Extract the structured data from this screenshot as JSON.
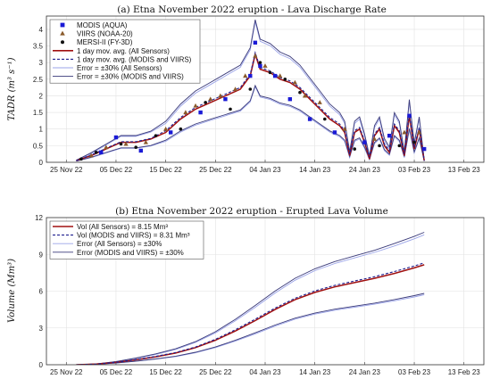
{
  "figure_title": "Etna November 2022 eruption",
  "chart_data": [
    {
      "type": "line",
      "panel": "(a)",
      "title": "(a) Etna November 2022 eruption - Lava Discharge Rate",
      "ylabel": "TADR (m³ s⁻¹)",
      "xlabel": "",
      "x_unit": "date",
      "x_ticks": [
        "25 Nov 22",
        "05 Dec 22",
        "15 Dec 22",
        "25 Dec 22",
        "04 Jan 23",
        "14 Jan 23",
        "24 Jan 23",
        "03 Feb 23",
        "13 Feb 23"
      ],
      "y_ticks": [
        0,
        0.5,
        1,
        1.5,
        2,
        2.5,
        3,
        3.5,
        4
      ],
      "ylim": [
        0,
        4.4
      ],
      "grid": true,
      "legend_position": "top-left",
      "series": [
        {
          "name": "MODIS (AQUA)",
          "kind": "scatter",
          "marker": "square",
          "color": "#1a1ad6",
          "x": [
            "2022-12-02",
            "2022-12-05",
            "2022-12-10",
            "2022-12-16",
            "2022-12-22",
            "2022-12-27",
            "2023-01-01",
            "2023-01-02",
            "2023-01-03",
            "2023-01-06",
            "2023-01-09",
            "2023-01-13",
            "2023-01-18",
            "2023-01-24",
            "2023-01-29",
            "2023-02-02",
            "2023-02-05"
          ],
          "y": [
            0.3,
            0.75,
            0.35,
            0.9,
            1.5,
            1.9,
            2.6,
            3.6,
            2.9,
            2.6,
            1.9,
            1.3,
            0.9,
            0.6,
            0.8,
            1.4,
            0.4
          ]
        },
        {
          "name": "VIIRS (NOAA-20)",
          "kind": "scatter",
          "marker": "triangle",
          "color": "#8a5a2b",
          "x": [
            "2022-11-30",
            "2022-12-03",
            "2022-12-07",
            "2022-12-11",
            "2022-12-15",
            "2022-12-19",
            "2022-12-21",
            "2022-12-24",
            "2022-12-26",
            "2022-12-29",
            "2022-12-31",
            "2023-01-02",
            "2023-01-04",
            "2023-01-07",
            "2023-01-10",
            "2023-01-12",
            "2023-01-15",
            "2023-01-20",
            "2023-01-26",
            "2023-02-01",
            "2023-02-04"
          ],
          "y": [
            0.2,
            0.45,
            0.55,
            0.6,
            1.0,
            1.5,
            1.7,
            1.9,
            2.0,
            2.2,
            2.6,
            3.2,
            2.9,
            2.6,
            2.4,
            2.0,
            1.8,
            1.0,
            0.7,
            0.9,
            0.9
          ]
        },
        {
          "name": "MERSI-II (FY-3D)",
          "kind": "scatter",
          "marker": "circle",
          "color": "#111111",
          "x": [
            "2022-11-28",
            "2022-12-01",
            "2022-12-06",
            "2022-12-09",
            "2022-12-13",
            "2022-12-18",
            "2022-12-23",
            "2022-12-28",
            "2023-01-01",
            "2023-01-03",
            "2023-01-05",
            "2023-01-08",
            "2023-01-11",
            "2023-01-16",
            "2023-01-22",
            "2023-01-27",
            "2023-01-31",
            "2023-02-03"
          ],
          "y": [
            0.1,
            0.3,
            0.55,
            0.45,
            0.8,
            1.0,
            1.8,
            1.6,
            2.2,
            3.0,
            2.7,
            2.5,
            2.1,
            1.3,
            0.4,
            0.5,
            0.5,
            0.6
          ]
        },
        {
          "name": "1 day mov. avg. (All Sensors)",
          "kind": "line",
          "style": "solid",
          "color": "#a01010",
          "x": [
            "2022-11-27",
            "2022-11-30",
            "2022-12-03",
            "2022-12-06",
            "2022-12-09",
            "2022-12-12",
            "2022-12-15",
            "2022-12-18",
            "2022-12-21",
            "2022-12-24",
            "2022-12-27",
            "2022-12-30",
            "2023-01-01",
            "2023-01-02",
            "2023-01-03",
            "2023-01-05",
            "2023-01-07",
            "2023-01-09",
            "2023-01-11",
            "2023-01-13",
            "2023-01-15",
            "2023-01-17",
            "2023-01-19",
            "2023-01-20",
            "2023-01-21",
            "2023-01-22",
            "2023-01-23",
            "2023-01-24",
            "2023-01-25",
            "2023-01-26",
            "2023-01-27",
            "2023-01-28",
            "2023-01-29",
            "2023-01-30",
            "2023-01-31",
            "2023-02-01",
            "2023-02-02",
            "2023-02-03",
            "2023-02-04",
            "2023-02-05"
          ],
          "y": [
            0.05,
            0.2,
            0.4,
            0.6,
            0.6,
            0.7,
            0.9,
            1.3,
            1.6,
            1.8,
            2.0,
            2.2,
            2.6,
            3.25,
            2.8,
            2.7,
            2.5,
            2.4,
            2.2,
            1.9,
            1.6,
            1.3,
            1.1,
            0.9,
            0.2,
            0.9,
            1.0,
            0.6,
            0.1,
            0.8,
            1.0,
            0.5,
            0.3,
            1.1,
            0.9,
            0.2,
            1.4,
            0.4,
            1.0,
            0.05
          ]
        },
        {
          "name": "1 day mov. avg. (MODIS and VIIRS)",
          "kind": "line",
          "style": "dashed",
          "color": "#1f1f8f",
          "x": [
            "2022-11-27",
            "2022-11-30",
            "2022-12-03",
            "2022-12-06",
            "2022-12-09",
            "2022-12-12",
            "2022-12-15",
            "2022-12-18",
            "2022-12-21",
            "2022-12-24",
            "2022-12-27",
            "2022-12-30",
            "2023-01-01",
            "2023-01-02",
            "2023-01-03",
            "2023-01-05",
            "2023-01-07",
            "2023-01-09",
            "2023-01-11",
            "2023-01-13",
            "2023-01-15",
            "2023-01-17",
            "2023-01-19",
            "2023-01-20",
            "2023-01-21",
            "2023-01-22",
            "2023-01-23",
            "2023-01-24",
            "2023-01-25",
            "2023-01-26",
            "2023-01-27",
            "2023-01-28",
            "2023-01-29",
            "2023-01-30",
            "2023-01-31",
            "2023-02-01",
            "2023-02-02",
            "2023-02-03",
            "2023-02-04",
            "2023-02-05"
          ],
          "y": [
            0.05,
            0.22,
            0.42,
            0.62,
            0.62,
            0.72,
            0.95,
            1.35,
            1.65,
            1.85,
            2.05,
            2.25,
            2.65,
            3.3,
            2.85,
            2.75,
            2.55,
            2.45,
            2.25,
            1.95,
            1.65,
            1.35,
            1.15,
            0.95,
            0.25,
            0.95,
            1.05,
            0.65,
            0.15,
            0.85,
            1.05,
            0.55,
            0.35,
            1.15,
            0.95,
            0.25,
            1.45,
            0.45,
            1.05,
            0.05
          ]
        },
        {
          "name": "Error = ±30% (All Sensors)",
          "kind": "band",
          "factor": 0.3,
          "base": "1 day mov. avg. (All Sensors)",
          "color": "#9aa3e8"
        },
        {
          "name": "Error = ±30% (MODIS and VIIRS)",
          "kind": "band",
          "factor": 0.3,
          "base": "1 day mov. avg. (MODIS and VIIRS)",
          "color": "#3a3a7a"
        }
      ]
    },
    {
      "type": "line",
      "panel": "(b)",
      "title": "(b) Etna November 2022 eruption - Erupted Lava Volume",
      "ylabel": "Volume (Mm³)",
      "xlabel": "",
      "x_unit": "date",
      "x_ticks": [
        "25 Nov 22",
        "05 Dec 22",
        "15 Dec 22",
        "25 Dec 22",
        "04 Jan 23",
        "14 Jan 23",
        "24 Jan 23",
        "03 Feb 23",
        "13 Feb 23"
      ],
      "y_ticks": [
        0,
        3,
        6,
        9,
        12
      ],
      "ylim": [
        0,
        12
      ],
      "grid": true,
      "legend_position": "top-left",
      "series": [
        {
          "name": "Vol (All Sensors) = 8.15 Mm³",
          "kind": "line",
          "style": "solid",
          "color": "#a01010",
          "x": [
            "2022-11-27",
            "2022-12-01",
            "2022-12-05",
            "2022-12-09",
            "2022-12-13",
            "2022-12-17",
            "2022-12-21",
            "2022-12-25",
            "2022-12-29",
            "2023-01-02",
            "2023-01-06",
            "2023-01-10",
            "2023-01-14",
            "2023-01-18",
            "2023-01-22",
            "2023-01-26",
            "2023-01-30",
            "2023-02-03",
            "2023-02-05"
          ],
          "y": [
            0,
            0.05,
            0.2,
            0.4,
            0.65,
            0.95,
            1.4,
            2.0,
            2.75,
            3.6,
            4.5,
            5.3,
            5.9,
            6.35,
            6.7,
            7.05,
            7.45,
            7.9,
            8.15
          ]
        },
        {
          "name": "Vol (MODIS and VIIRS) = 8.31 Mm³",
          "kind": "line",
          "style": "dashed",
          "color": "#1f1f8f",
          "x": [
            "2022-11-27",
            "2022-12-01",
            "2022-12-05",
            "2022-12-09",
            "2022-12-13",
            "2022-12-17",
            "2022-12-21",
            "2022-12-25",
            "2022-12-29",
            "2023-01-02",
            "2023-01-06",
            "2023-01-10",
            "2023-01-14",
            "2023-01-18",
            "2023-01-22",
            "2023-01-26",
            "2023-01-30",
            "2023-02-03",
            "2023-02-05"
          ],
          "y": [
            0,
            0.05,
            0.2,
            0.42,
            0.68,
            1.0,
            1.45,
            2.07,
            2.85,
            3.72,
            4.62,
            5.42,
            6.02,
            6.47,
            6.83,
            7.18,
            7.6,
            8.05,
            8.31
          ]
        },
        {
          "name": "Error (All Sensors) = ±30%",
          "kind": "band",
          "factor": 0.3,
          "base": "Vol (All Sensors) = 8.15 Mm³",
          "color": "#9aa3e8"
        },
        {
          "name": "Error (MODIS and VIIRS) = ±30%",
          "kind": "band",
          "factor": 0.3,
          "base": "Vol (MODIS and VIIRS) = 8.31 Mm³",
          "color": "#3a3a7a"
        }
      ]
    }
  ]
}
